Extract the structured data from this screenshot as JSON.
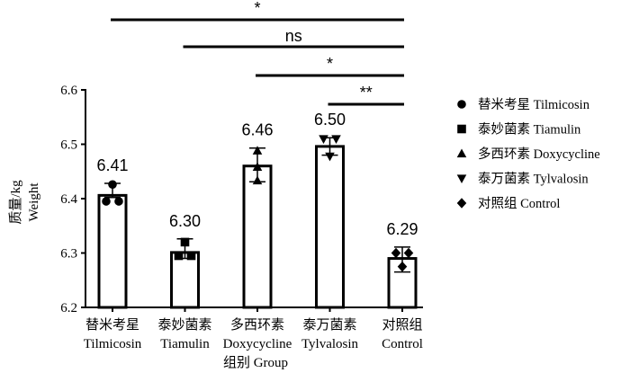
{
  "chart_data": {
    "type": "bar",
    "categories": [
      {
        "zh": "替米考星",
        "en": "Tilmicosin",
        "marker": "circle"
      },
      {
        "zh": "泰妙菌素",
        "en": "Tiamulin",
        "marker": "square"
      },
      {
        "zh": "多西环素",
        "en": "Doxycycline",
        "marker": "triangle-up"
      },
      {
        "zh": "泰万菌素",
        "en": "Tylvalosin",
        "marker": "triangle-down"
      },
      {
        "zh": "对照组",
        "en": "Control",
        "marker": "diamond"
      }
    ],
    "values": [
      6.41,
      6.3,
      6.46,
      6.5,
      6.29
    ],
    "value_labels": [
      "6.41",
      "6.30",
      "6.46",
      "6.50",
      "6.29"
    ],
    "bar_heights": [
      6.406,
      6.301,
      6.46,
      6.496,
      6.29
    ],
    "error_bars": [
      {
        "low": 6.402,
        "high": 6.428
      },
      {
        "low": 6.29,
        "high": 6.326
      },
      {
        "low": 6.431,
        "high": 6.493
      },
      {
        "low": 6.48,
        "high": 6.512
      },
      {
        "low": 6.265,
        "high": 6.311
      }
    ],
    "points": [
      [
        6.426,
        6.395,
        6.395
      ],
      [
        6.32,
        6.295,
        6.295
      ],
      [
        6.488,
        6.433,
        6.458
      ],
      [
        6.51,
        6.51,
        6.478
      ],
      [
        6.3,
        6.3,
        6.275
      ]
    ],
    "ylim": [
      6.2,
      6.6
    ],
    "yticks": [
      "6.2",
      "6.3",
      "6.4",
      "6.5",
      "6.6"
    ],
    "ylabel_zh": "质量/kg",
    "ylabel_en": "Weight",
    "xlabel": "组别 Group",
    "significance": [
      {
        "from": 0,
        "to": 4,
        "label": "*"
      },
      {
        "from": 1,
        "to": 4,
        "label": "ns"
      },
      {
        "from": 2,
        "to": 4,
        "label": "*"
      },
      {
        "from": 3,
        "to": 4,
        "label": "**"
      }
    ],
    "legend": [
      {
        "marker": "circle",
        "label": "替米考星 Tilmicosin"
      },
      {
        "marker": "square",
        "label": "泰妙菌素 Tiamulin"
      },
      {
        "marker": "triangle-up",
        "label": "多西环素 Doxycycline"
      },
      {
        "marker": "triangle-down",
        "label": "泰万菌素 Tylvalosin"
      },
      {
        "marker": "diamond",
        "label": "对照组 Control"
      }
    ]
  }
}
